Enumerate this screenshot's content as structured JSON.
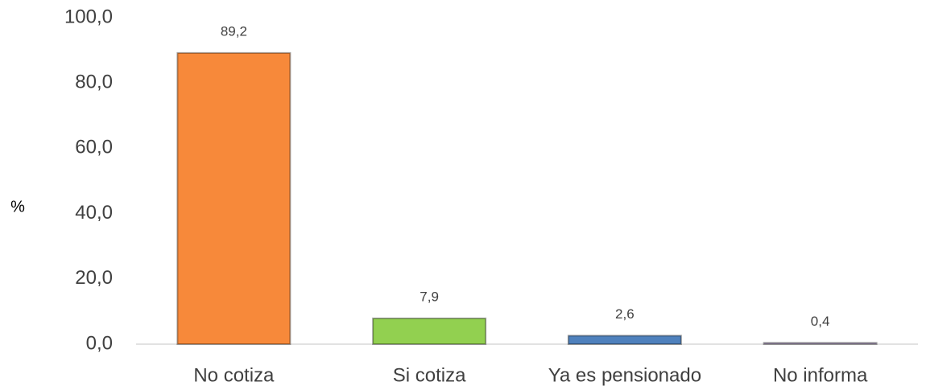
{
  "chart_data": {
    "type": "bar",
    "y_axis_label": "%",
    "categories": [
      "No cotiza",
      "Si cotiza",
      "Ya es pensionado",
      "No informa"
    ],
    "values": [
      89.2,
      7.9,
      2.6,
      0.4
    ],
    "value_labels": [
      "89,2",
      "7,9",
      "2,6",
      "0,4"
    ],
    "colors": [
      "#f7893a",
      "#92d050",
      "#4f81bd",
      "#b3a2c7"
    ],
    "ylim": [
      0,
      100
    ],
    "yticks": [
      {
        "value": 0,
        "label": "0,0"
      },
      {
        "value": 20,
        "label": "20,0"
      },
      {
        "value": 40,
        "label": "40,0"
      },
      {
        "value": 60,
        "label": "60,0"
      },
      {
        "value": 80,
        "label": "80,0"
      },
      {
        "value": 100,
        "label": "100,0"
      }
    ],
    "grid": false
  }
}
